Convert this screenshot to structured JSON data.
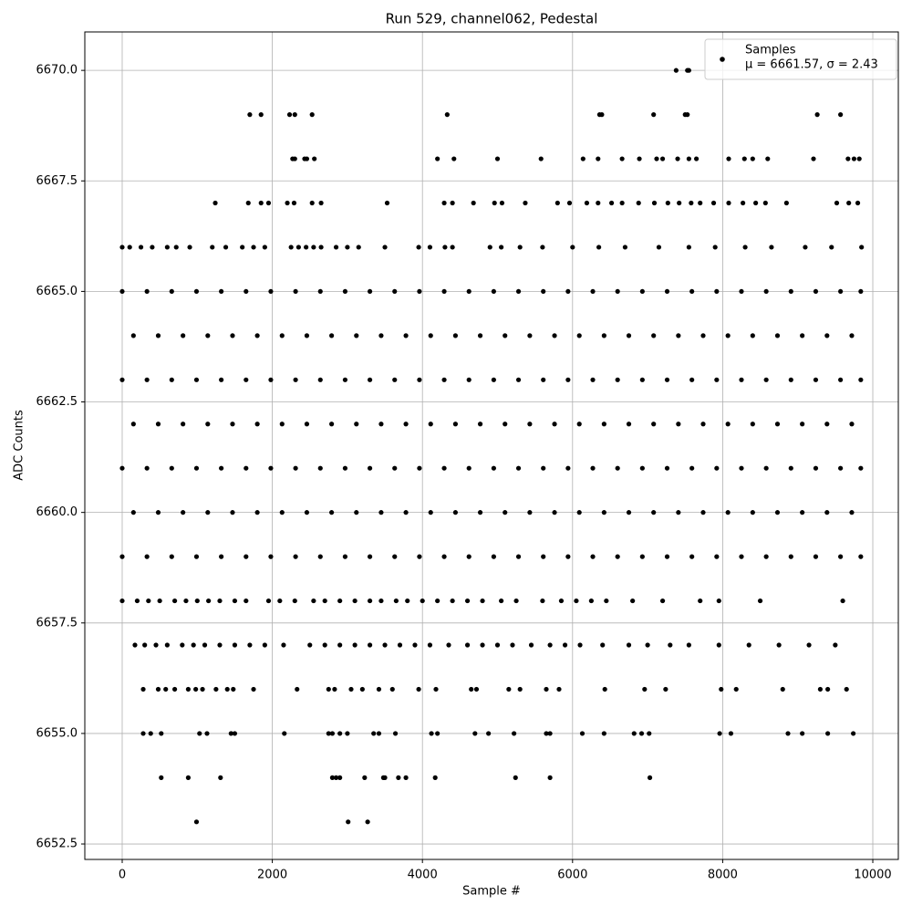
{
  "chart_data": {
    "type": "scatter",
    "title": "Run 529, channel062, Pedestal",
    "x_label": "Sample #",
    "y_label": "ADC Counts",
    "legend_note": "μ = 6661.57, σ = 2.43",
    "legend": "upper right",
    "grid": true,
    "xlim": [
      -498,
      10340
    ],
    "ylim": [
      6652.15,
      6670.87
    ],
    "xticks": [
      0,
      2000,
      4000,
      6000,
      8000,
      10000
    ],
    "yticks": [
      6652.5,
      {
        "value": 6655,
        "label": "6655.0"
      },
      6657.5,
      {
        "value": 6660,
        "label": "6660.0"
      },
      6662.5,
      {
        "value": 6665,
        "label": "6665.0"
      },
      6667.5,
      {
        "value": 6670,
        "label": "6670.0"
      }
    ],
    "series": [
      {
        "name": "Samples",
        "color": "#000000",
        "x": [
          7380,
          7530,
          7550,
          1700,
          1850,
          2230,
          2300,
          2530,
          4330,
          6360,
          6390,
          7080,
          7500,
          7530,
          9260,
          9570,
          2270,
          2300,
          2430,
          2460,
          2560,
          4200,
          4420,
          5000,
          5580,
          6140,
          6340,
          6660,
          6890,
          7120,
          7200,
          7400,
          7550,
          7650,
          8080,
          8290,
          8400,
          8600,
          9210,
          9670,
          9750,
          9820,
          1240,
          1680,
          1850,
          1950,
          2200,
          2290,
          2530,
          2650,
          3530,
          4290,
          4400,
          4680,
          4960,
          5060,
          5370,
          5800,
          5960,
          6190,
          6340,
          6520,
          6660,
          6880,
          7090,
          7270,
          7420,
          7580,
          7700,
          7880,
          8080,
          8270,
          8440,
          8570,
          8850,
          9520,
          9680,
          9800,
          0,
          100,
          250,
          400,
          600,
          720,
          900,
          1200,
          1380,
          1600,
          1750,
          1900,
          2250,
          2350,
          2450,
          2550,
          2650,
          2850,
          3000,
          3150,
          3500,
          3950,
          4100,
          4300,
          4400,
          4900,
          5050,
          5300,
          5600,
          6000,
          6350,
          6700,
          7150,
          7550,
          7900,
          8300,
          8650,
          9100,
          9450,
          9850,
          0,
          330,
          660,
          990,
          1320,
          1650,
          1980,
          2310,
          2640,
          2970,
          3300,
          3630,
          3960,
          4290,
          4620,
          4950,
          5280,
          5610,
          5940,
          6270,
          6600,
          6930,
          7260,
          7590,
          7920,
          8250,
          8580,
          8910,
          9240,
          9570,
          9840,
          150,
          480,
          810,
          1140,
          1470,
          1800,
          2130,
          2460,
          2790,
          3120,
          3450,
          3780,
          4110,
          4440,
          4770,
          5100,
          5430,
          5760,
          6090,
          6420,
          6750,
          7080,
          7410,
          7740,
          8070,
          8400,
          8730,
          9060,
          9390,
          9720,
          0,
          330,
          660,
          990,
          1320,
          1650,
          1980,
          2310,
          2640,
          2970,
          3300,
          3630,
          3960,
          4290,
          4620,
          4950,
          5280,
          5610,
          5940,
          6270,
          6600,
          6930,
          7260,
          7590,
          7920,
          8250,
          8580,
          8910,
          9240,
          9570,
          9840,
          150,
          480,
          810,
          1140,
          1470,
          1800,
          2130,
          2460,
          2790,
          3120,
          3450,
          3780,
          4110,
          4440,
          4770,
          5100,
          5430,
          5760,
          6090,
          6420,
          6750,
          7080,
          7410,
          7740,
          8070,
          8400,
          8730,
          9060,
          9390,
          9720,
          0,
          330,
          660,
          990,
          1320,
          1650,
          1980,
          2310,
          2640,
          2970,
          3300,
          3630,
          3960,
          4290,
          4620,
          4950,
          5280,
          5610,
          5940,
          6270,
          6600,
          6930,
          7260,
          7590,
          7920,
          8250,
          8580,
          8910,
          9240,
          9570,
          9840,
          150,
          480,
          810,
          1140,
          1470,
          1800,
          2130,
          2460,
          2790,
          3120,
          3450,
          3780,
          4110,
          4440,
          4770,
          5100,
          5430,
          5760,
          6090,
          6420,
          6750,
          7080,
          7410,
          7740,
          8070,
          8400,
          8730,
          9060,
          9390,
          9720,
          0,
          330,
          660,
          990,
          1320,
          1650,
          1980,
          2310,
          2640,
          2970,
          3300,
          3630,
          3960,
          4290,
          4620,
          4950,
          5280,
          5610,
          5940,
          6270,
          6600,
          6930,
          7260,
          7590,
          7920,
          8250,
          8580,
          8910,
          9240,
          9570,
          9840,
          0,
          200,
          350,
          500,
          700,
          850,
          1000,
          1150,
          1300,
          1500,
          1650,
          1950,
          2100,
          2300,
          2550,
          2700,
          2900,
          3100,
          3300,
          3450,
          3650,
          3800,
          4000,
          4200,
          4400,
          4600,
          4800,
          5050,
          5250,
          5600,
          5850,
          6050,
          6250,
          6450,
          6800,
          7200,
          7700,
          7950,
          8500,
          9600,
          170,
          300,
          450,
          600,
          800,
          950,
          1100,
          1300,
          1500,
          1700,
          1900,
          2150,
          2500,
          2700,
          2900,
          3100,
          3300,
          3500,
          3700,
          3900,
          4100,
          4350,
          4600,
          4800,
          5000,
          5200,
          5450,
          5700,
          5900,
          6100,
          6400,
          6750,
          7000,
          7300,
          7550,
          7950,
          8350,
          8750,
          9150,
          9500,
          280,
          480,
          580,
          700,
          880,
          980,
          1070,
          1250,
          1400,
          1480,
          1750,
          2330,
          2750,
          2830,
          3050,
          3200,
          3420,
          3600,
          3950,
          4180,
          4650,
          4720,
          5150,
          5300,
          5650,
          5820,
          6430,
          6960,
          7240,
          7980,
          8180,
          8800,
          9300,
          9400,
          9650,
          280,
          380,
          520,
          1030,
          1130,
          1450,
          1500,
          2160,
          2750,
          2800,
          2900,
          3000,
          3350,
          3420,
          3640,
          4120,
          4200,
          4700,
          4880,
          5220,
          5650,
          5700,
          6130,
          6420,
          6820,
          6920,
          7020,
          7960,
          8110,
          8870,
          9060,
          9400,
          9740,
          520,
          880,
          1310,
          2800,
          2850,
          2900,
          3230,
          3480,
          3500,
          3680,
          3780,
          4170,
          5240,
          5700,
          7030,
          990,
          3010,
          3270
        ],
        "values": [
          6670,
          6670,
          6670,
          6669,
          6669,
          6669,
          6669,
          6669,
          6669,
          6669,
          6669,
          6669,
          6669,
          6669,
          6669,
          6669,
          6668,
          6668,
          6668,
          6668,
          6668,
          6668,
          6668,
          6668,
          6668,
          6668,
          6668,
          6668,
          6668,
          6668,
          6668,
          6668,
          6668,
          6668,
          6668,
          6668,
          6668,
          6668,
          6668,
          6668,
          6668,
          6668,
          6667,
          6667,
          6667,
          6667,
          6667,
          6667,
          6667,
          6667,
          6667,
          6667,
          6667,
          6667,
          6667,
          6667,
          6667,
          6667,
          6667,
          6667,
          6667,
          6667,
          6667,
          6667,
          6667,
          6667,
          6667,
          6667,
          6667,
          6667,
          6667,
          6667,
          6667,
          6667,
          6667,
          6667,
          6667,
          6667,
          6666,
          6666,
          6666,
          6666,
          6666,
          6666,
          6666,
          6666,
          6666,
          6666,
          6666,
          6666,
          6666,
          6666,
          6666,
          6666,
          6666,
          6666,
          6666,
          6666,
          6666,
          6666,
          6666,
          6666,
          6666,
          6666,
          6666,
          6666,
          6666,
          6666,
          6666,
          6666,
          6666,
          6666,
          6666,
          6666,
          6666,
          6666,
          6666,
          6666,
          6665,
          6665,
          6665,
          6665,
          6665,
          6665,
          6665,
          6665,
          6665,
          6665,
          6665,
          6665,
          6665,
          6665,
          6665,
          6665,
          6665,
          6665,
          6665,
          6665,
          6665,
          6665,
          6665,
          6665,
          6665,
          6665,
          6665,
          6665,
          6665,
          6665,
          6665,
          6664,
          6664,
          6664,
          6664,
          6664,
          6664,
          6664,
          6664,
          6664,
          6664,
          6664,
          6664,
          6664,
          6664,
          6664,
          6664,
          6664,
          6664,
          6664,
          6664,
          6664,
          6664,
          6664,
          6664,
          6664,
          6664,
          6664,
          6664,
          6664,
          6664,
          6663,
          6663,
          6663,
          6663,
          6663,
          6663,
          6663,
          6663,
          6663,
          6663,
          6663,
          6663,
          6663,
          6663,
          6663,
          6663,
          6663,
          6663,
          6663,
          6663,
          6663,
          6663,
          6663,
          6663,
          6663,
          6663,
          6663,
          6663,
          6663,
          6663,
          6663,
          6662,
          6662,
          6662,
          6662,
          6662,
          6662,
          6662,
          6662,
          6662,
          6662,
          6662,
          6662,
          6662,
          6662,
          6662,
          6662,
          6662,
          6662,
          6662,
          6662,
          6662,
          6662,
          6662,
          6662,
          6662,
          6662,
          6662,
          6662,
          6662,
          6662,
          6661,
          6661,
          6661,
          6661,
          6661,
          6661,
          6661,
          6661,
          6661,
          6661,
          6661,
          6661,
          6661,
          6661,
          6661,
          6661,
          6661,
          6661,
          6661,
          6661,
          6661,
          6661,
          6661,
          6661,
          6661,
          6661,
          6661,
          6661,
          6661,
          6661,
          6661,
          6660,
          6660,
          6660,
          6660,
          6660,
          6660,
          6660,
          6660,
          6660,
          6660,
          6660,
          6660,
          6660,
          6660,
          6660,
          6660,
          6660,
          6660,
          6660,
          6660,
          6660,
          6660,
          6660,
          6660,
          6660,
          6660,
          6660,
          6660,
          6660,
          6660,
          6659,
          6659,
          6659,
          6659,
          6659,
          6659,
          6659,
          6659,
          6659,
          6659,
          6659,
          6659,
          6659,
          6659,
          6659,
          6659,
          6659,
          6659,
          6659,
          6659,
          6659,
          6659,
          6659,
          6659,
          6659,
          6659,
          6659,
          6659,
          6659,
          6659,
          6659,
          6658,
          6658,
          6658,
          6658,
          6658,
          6658,
          6658,
          6658,
          6658,
          6658,
          6658,
          6658,
          6658,
          6658,
          6658,
          6658,
          6658,
          6658,
          6658,
          6658,
          6658,
          6658,
          6658,
          6658,
          6658,
          6658,
          6658,
          6658,
          6658,
          6658,
          6658,
          6658,
          6658,
          6658,
          6658,
          6658,
          6658,
          6658,
          6658,
          6658,
          6657,
          6657,
          6657,
          6657,
          6657,
          6657,
          6657,
          6657,
          6657,
          6657,
          6657,
          6657,
          6657,
          6657,
          6657,
          6657,
          6657,
          6657,
          6657,
          6657,
          6657,
          6657,
          6657,
          6657,
          6657,
          6657,
          6657,
          6657,
          6657,
          6657,
          6657,
          6657,
          6657,
          6657,
          6657,
          6657,
          6657,
          6657,
          6657,
          6657,
          6656,
          6656,
          6656,
          6656,
          6656,
          6656,
          6656,
          6656,
          6656,
          6656,
          6656,
          6656,
          6656,
          6656,
          6656,
          6656,
          6656,
          6656,
          6656,
          6656,
          6656,
          6656,
          6656,
          6656,
          6656,
          6656,
          6656,
          6656,
          6656,
          6656,
          6656,
          6656,
          6656,
          6656,
          6656,
          6655,
          6655,
          6655,
          6655,
          6655,
          6655,
          6655,
          6655,
          6655,
          6655,
          6655,
          6655,
          6655,
          6655,
          6655,
          6655,
          6655,
          6655,
          6655,
          6655,
          6655,
          6655,
          6655,
          6655,
          6655,
          6655,
          6655,
          6655,
          6655,
          6655,
          6655,
          6655,
          6655,
          6654,
          6654,
          6654,
          6654,
          6654,
          6654,
          6654,
          6654,
          6654,
          6654,
          6654,
          6654,
          6654,
          6654,
          6654,
          6653,
          6653,
          6653
        ]
      }
    ]
  }
}
